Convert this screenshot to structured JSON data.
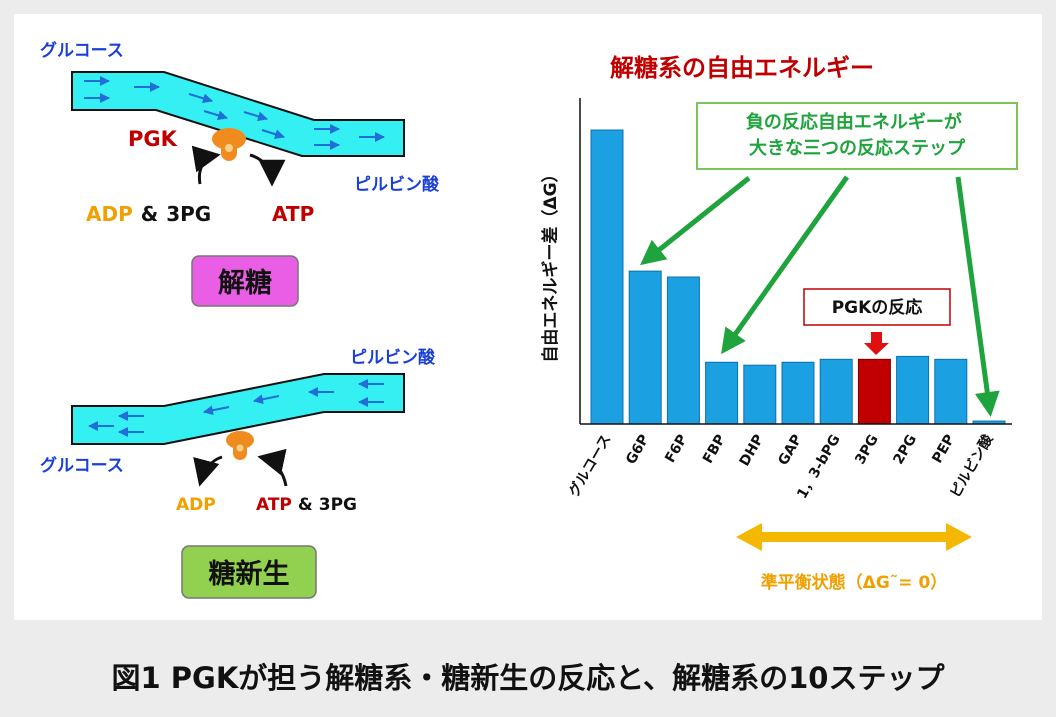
{
  "left": {
    "glycolysis": {
      "start_label": "グルコース",
      "end_label": "ピルビン酸",
      "enzyme": "PGK",
      "substrate_adp": "ADP",
      "amp": "&",
      "substrate_3pg": "3PG",
      "product_atp": "ATP",
      "box_label": "解糖",
      "box_color": "#ea5ee6"
    },
    "gluconeogenesis": {
      "start_label": "ピルビン酸",
      "end_label": "グルコース",
      "product_adp": "ADP",
      "substrate_atp": "ATP",
      "amp": "&",
      "substrate_3pg": "3PG",
      "box_label": "糖新生",
      "box_color": "#92d050"
    }
  },
  "chart_data": {
    "type": "bar",
    "title": "解糖系の自由エネルギー",
    "ylabel": "自由エネルギー差（ΔG）",
    "categories": [
      "グルコース",
      "G6P",
      "F6P",
      "FBP",
      "DHP",
      "GAP",
      "1，3-bPG",
      "3PG",
      "2PG",
      "PEP",
      "ピルビン酸"
    ],
    "values": [
      100,
      52,
      50,
      21,
      20,
      21,
      22,
      22,
      23,
      22,
      1
    ],
    "highlight": "3PG",
    "colors": {
      "bar": "#1ba1e2",
      "highlight": "#c00000",
      "arrow": "#1fa33c"
    },
    "callout": "負の反応自由エネルギーが\n大きな三つの反応ステップ",
    "pgk_label": "PGKの反応",
    "range_label": "準平衡状態（ΔG˜= 0）"
  },
  "caption": "図1 PGKが担う解糖系・糖新生の反応と、解糖系の10ステップ"
}
